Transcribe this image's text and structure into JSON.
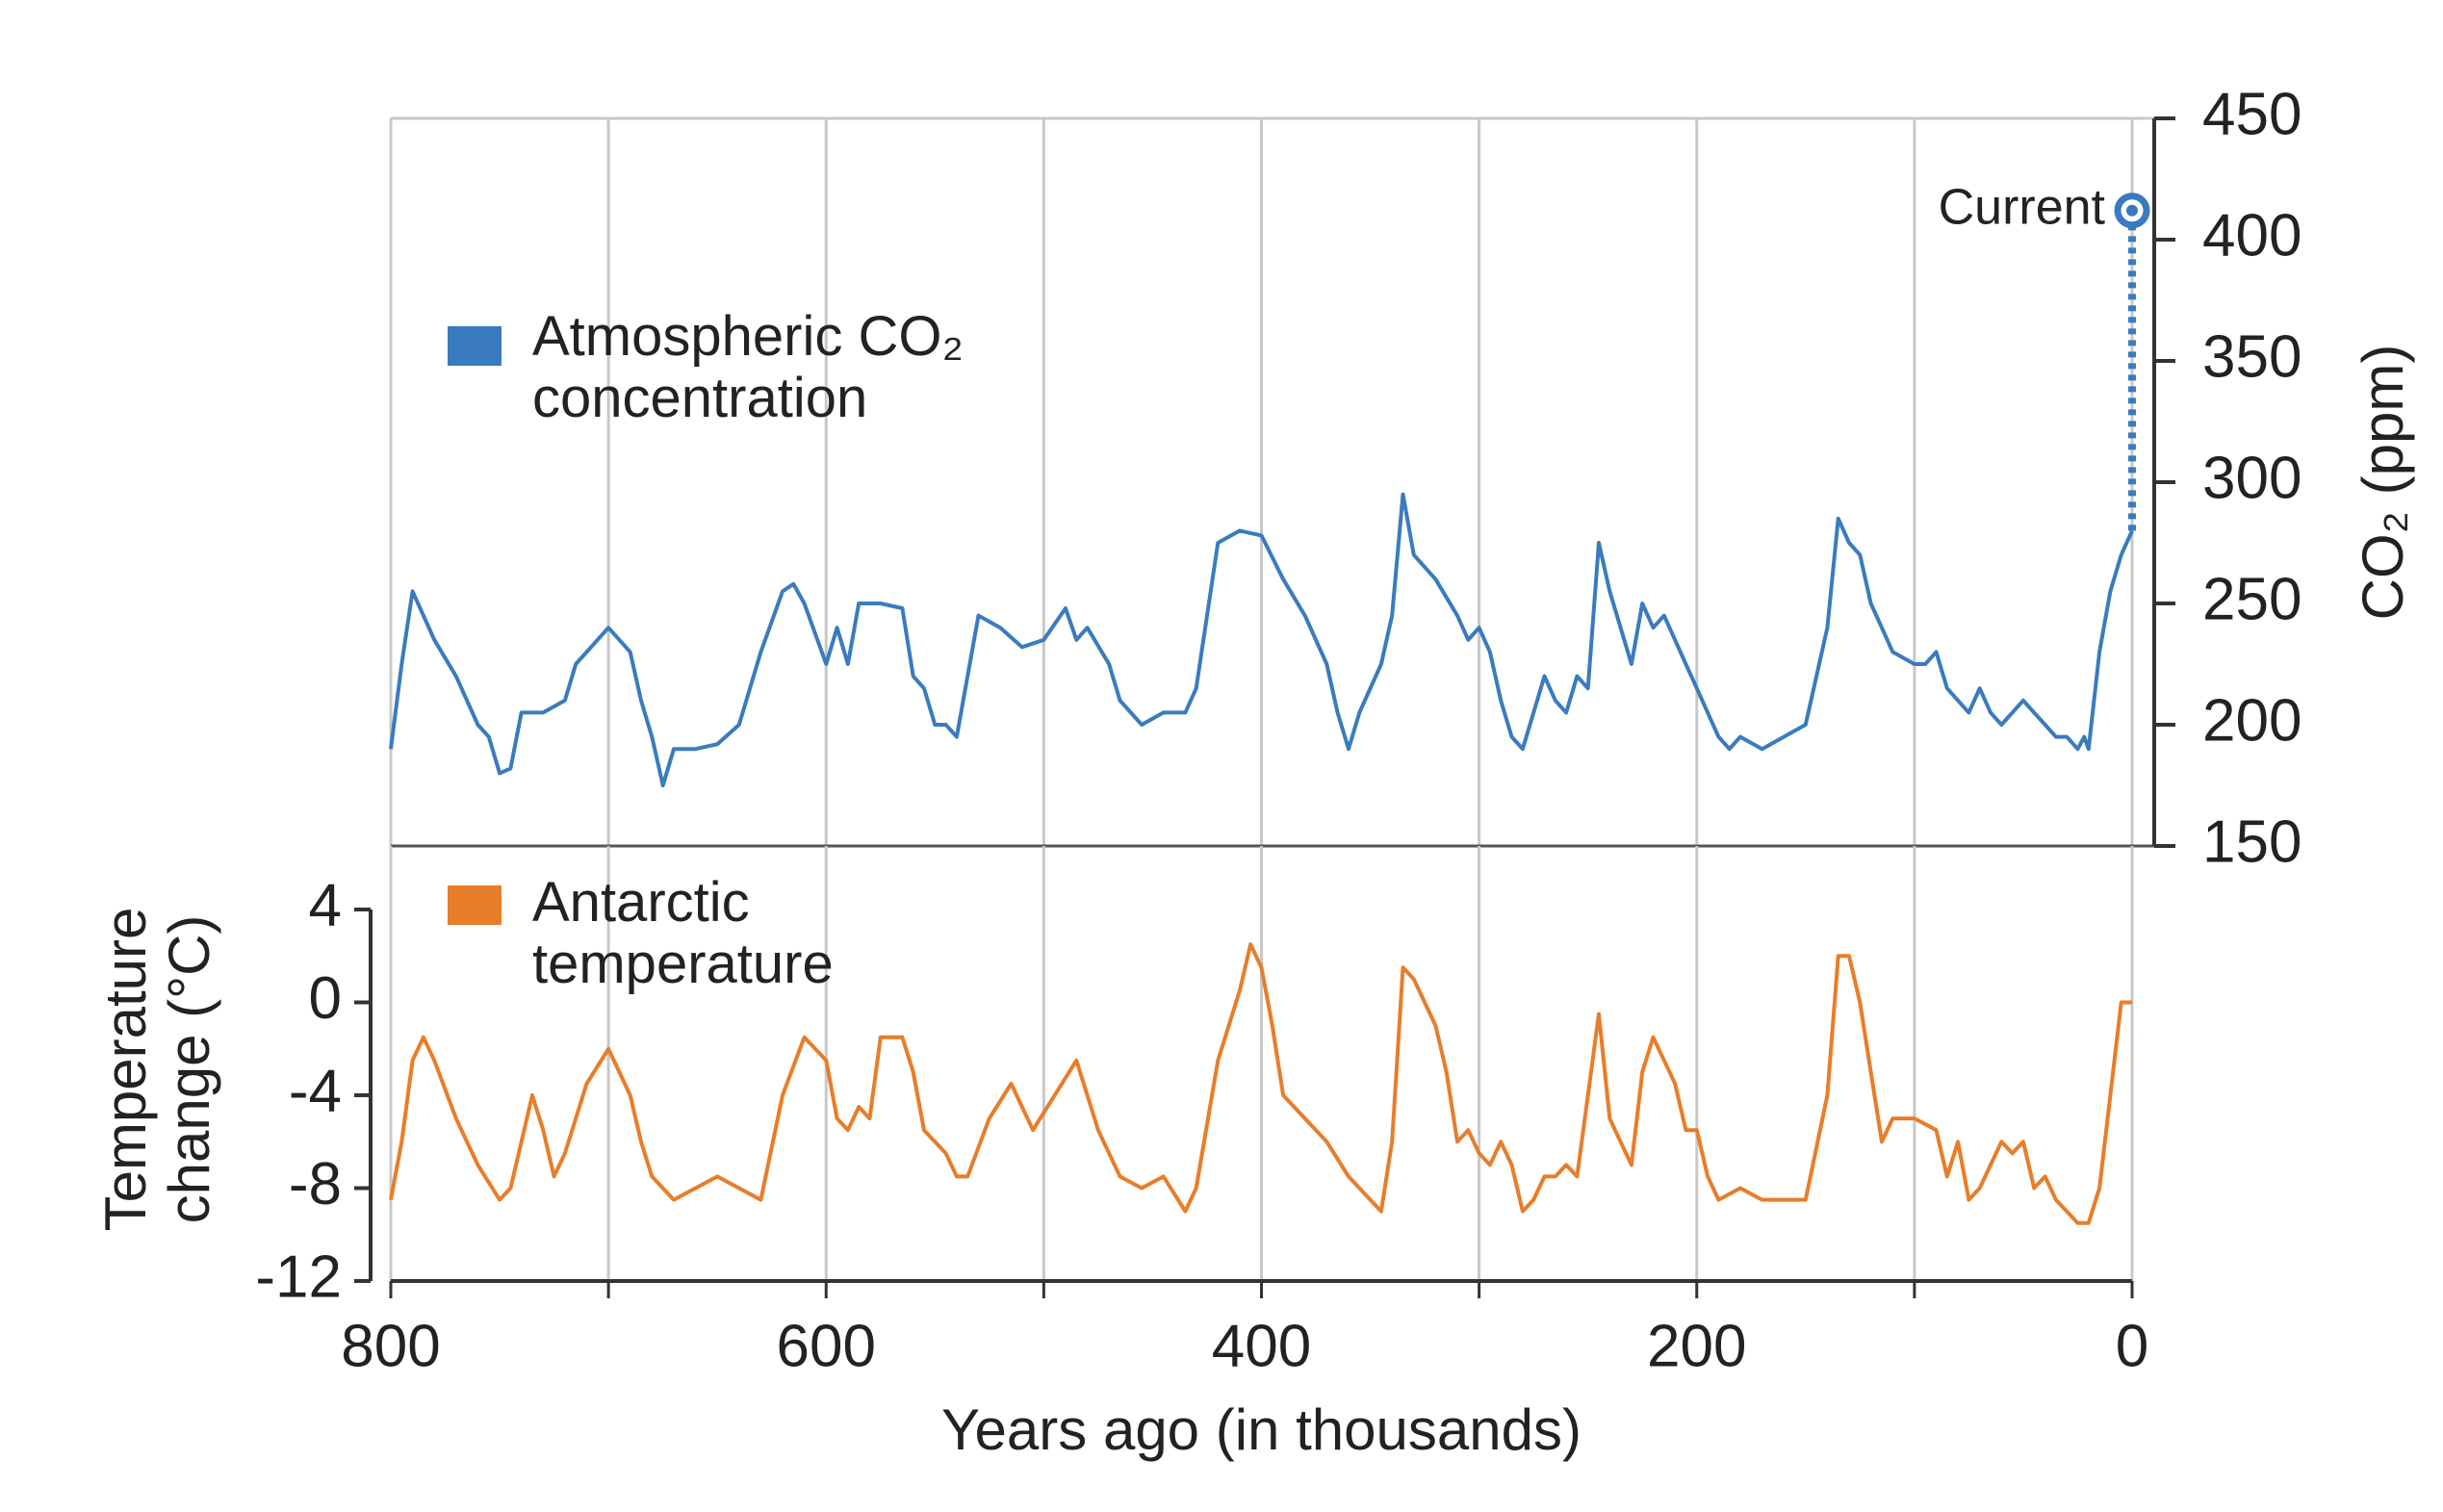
{
  "chart_data": [
    {
      "type": "line",
      "y2label": "CO₂ (ppm)",
      "y2lim": [
        150,
        450
      ],
      "y2ticks": [
        150,
        200,
        250,
        300,
        350,
        400,
        450
      ],
      "xlim": [
        800,
        0
      ],
      "xgrid": [
        800,
        700,
        600,
        500,
        400,
        300,
        200,
        100,
        0
      ],
      "series": [
        {
          "name": "Atmospheric CO₂ concentration",
          "color": "#3a7bbf",
          "axis": "y2",
          "x": [
            800,
            795,
            790,
            785,
            780,
            770,
            760,
            755,
            750,
            745,
            740,
            730,
            720,
            715,
            705,
            700,
            690,
            685,
            680,
            675,
            670,
            660,
            650,
            640,
            630,
            620,
            615,
            610,
            600,
            595,
            590,
            585,
            575,
            565,
            560,
            555,
            550,
            545,
            540,
            535,
            530,
            520,
            510,
            500,
            490,
            485,
            480,
            470,
            465,
            455,
            445,
            435,
            430,
            420,
            410,
            400,
            390,
            380,
            370,
            365,
            360,
            355,
            350,
            345,
            340,
            335,
            330,
            320,
            310,
            305,
            300,
            295,
            290,
            285,
            280,
            275,
            270,
            265,
            260,
            255,
            250,
            245,
            240,
            235,
            230,
            225,
            220,
            215,
            210,
            205,
            200,
            195,
            190,
            185,
            180,
            170,
            160,
            150,
            140,
            135,
            130,
            125,
            120,
            115,
            110,
            100,
            95,
            90,
            85,
            80,
            75,
            70,
            65,
            60,
            55,
            50,
            45,
            40,
            35,
            30,
            25,
            22,
            20,
            15,
            10,
            5,
            0
          ],
          "values": [
            190,
            225,
            255,
            245,
            235,
            220,
            200,
            195,
            180,
            182,
            205,
            205,
            210,
            225,
            235,
            240,
            230,
            210,
            195,
            175,
            190,
            190,
            192,
            200,
            230,
            255,
            258,
            250,
            225,
            240,
            225,
            250,
            250,
            248,
            220,
            215,
            200,
            200,
            195,
            220,
            245,
            240,
            232,
            235,
            248,
            235,
            240,
            225,
            210,
            200,
            205,
            205,
            215,
            275,
            280,
            278,
            260,
            245,
            225,
            205,
            190,
            205,
            215,
            225,
            245,
            295,
            270,
            260,
            245,
            235,
            240,
            230,
            210,
            195,
            190,
            205,
            220,
            210,
            205,
            220,
            215,
            275,
            255,
            240,
            225,
            250,
            240,
            245,
            235,
            225,
            215,
            205,
            195,
            190,
            195,
            190,
            195,
            200,
            240,
            285,
            275,
            270,
            250,
            240,
            230,
            225,
            225,
            230,
            215,
            210,
            205,
            215,
            205,
            200,
            205,
            210,
            205,
            200,
            195,
            195,
            190,
            195,
            190,
            230,
            255,
            270,
            280
          ]
        }
      ],
      "annotations": [
        {
          "text": "Current",
          "x": 0,
          "value": 412
        }
      ]
    },
    {
      "type": "line",
      "ylabel": "Temperature change (°C)",
      "ylim": [
        -12,
        4
      ],
      "yticks": [
        4,
        0,
        -4,
        -8,
        -12
      ],
      "xlim": [
        800,
        0
      ],
      "xticks": [
        800,
        600,
        400,
        200,
        0
      ],
      "xlabel": "Years ago (in thousands)",
      "xgrid": [
        800,
        700,
        600,
        500,
        400,
        300,
        200,
        100,
        0
      ],
      "series": [
        {
          "name": "Antarctic temperature",
          "color": "#e87d2a",
          "x": [
            800,
            795,
            790,
            785,
            780,
            770,
            760,
            750,
            745,
            740,
            735,
            730,
            725,
            720,
            710,
            700,
            690,
            685,
            680,
            670,
            660,
            650,
            640,
            630,
            620,
            610,
            600,
            595,
            590,
            585,
            580,
            575,
            565,
            560,
            555,
            545,
            540,
            535,
            525,
            515,
            505,
            495,
            485,
            475,
            465,
            455,
            445,
            435,
            430,
            420,
            410,
            405,
            400,
            395,
            390,
            380,
            370,
            360,
            350,
            345,
            340,
            335,
            330,
            320,
            315,
            310,
            305,
            300,
            295,
            290,
            285,
            280,
            275,
            270,
            265,
            260,
            255,
            250,
            245,
            240,
            235,
            230,
            225,
            220,
            215,
            210,
            205,
            200,
            195,
            190,
            180,
            170,
            160,
            150,
            140,
            135,
            130,
            125,
            120,
            115,
            110,
            100,
            90,
            85,
            80,
            75,
            70,
            65,
            60,
            55,
            50,
            45,
            40,
            35,
            30,
            25,
            20,
            15,
            10,
            5,
            0
          ],
          "values": [
            -8.5,
            -6,
            -2.5,
            -1.5,
            -2.5,
            -5,
            -7,
            -8.5,
            -8,
            -6,
            -4,
            -5.5,
            -7.5,
            -6.5,
            -3.5,
            -2,
            -4,
            -6,
            -7.5,
            -8.5,
            -8,
            -7.5,
            -8,
            -8.5,
            -4,
            -1.5,
            -2.5,
            -5,
            -5.5,
            -4.5,
            -5,
            -1.5,
            -1.5,
            -3,
            -5.5,
            -6.5,
            -7.5,
            -7.5,
            -5,
            -3.5,
            -5.5,
            -4,
            -2.5,
            -5.5,
            -7.5,
            -8,
            -7.5,
            -9,
            -8,
            -2.5,
            0.5,
            2.5,
            1.5,
            -1,
            -4,
            -5,
            -6,
            -7.5,
            -8.5,
            -9,
            -6,
            1.5,
            1,
            -1,
            -3,
            -6,
            -5.5,
            -6.5,
            -7,
            -6,
            -7,
            -9,
            -8.5,
            -7.5,
            -7.5,
            -7,
            -7.5,
            -4,
            -0.5,
            -5,
            -6,
            -7,
            -3,
            -1.5,
            -2.5,
            -3.5,
            -5.5,
            -5.5,
            -7.5,
            -8.5,
            -8,
            -8.5,
            -8.5,
            -8.5,
            -4,
            2,
            2,
            0,
            -3,
            -6,
            -5,
            -5,
            -5.5,
            -7.5,
            -6,
            -8.5,
            -8,
            -7,
            -6,
            -6.5,
            -6,
            -8,
            -7.5,
            -8.5,
            -9,
            -9.5,
            -9.5,
            -8,
            -4,
            0,
            0
          ]
        }
      ]
    }
  ]
}
